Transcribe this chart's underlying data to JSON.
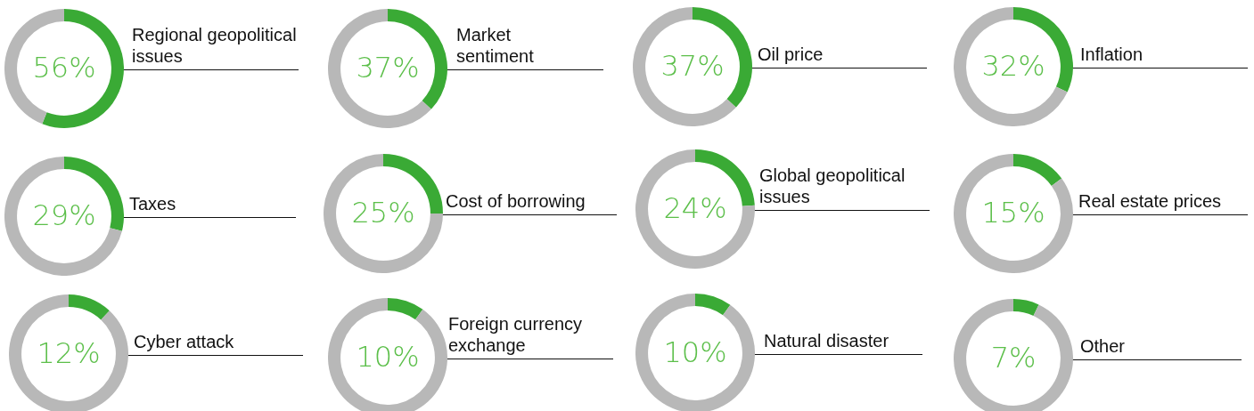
{
  "chart_data": [
    {
      "type": "donut",
      "title": "Regional geopolitical issues",
      "categories": [
        null,
        null
      ],
      "values": [
        56,
        44
      ],
      "colors": [
        "#3aaa35",
        "#b8b8b8"
      ],
      "value_labels": [
        "56%",
        null
      ]
    },
    {
      "type": "donut",
      "title": "Market sentiment",
      "categories": [
        null,
        null
      ],
      "values": [
        37,
        63
      ],
      "colors": [
        "#3aaa35",
        "#b8b8b8"
      ],
      "value_labels": [
        "37%",
        null
      ]
    },
    {
      "type": "donut",
      "title": "Oil price",
      "categories": [
        null,
        null
      ],
      "values": [
        37,
        63
      ],
      "colors": [
        "#3aaa35",
        "#b8b8b8"
      ],
      "value_labels": [
        "37%",
        null
      ]
    },
    {
      "type": "donut",
      "title": "Inflation",
      "categories": [
        null,
        null
      ],
      "values": [
        32,
        68
      ],
      "colors": [
        "#3aaa35",
        "#b8b8b8"
      ],
      "value_labels": [
        "32%",
        null
      ]
    },
    {
      "type": "donut",
      "title": "Taxes",
      "categories": [
        null,
        null
      ],
      "values": [
        29,
        71
      ],
      "colors": [
        "#3aaa35",
        "#b8b8b8"
      ],
      "value_labels": [
        "29%",
        null
      ]
    },
    {
      "type": "donut",
      "title": "Cost of borrowing",
      "categories": [
        null,
        null
      ],
      "values": [
        25,
        75
      ],
      "colors": [
        "#3aaa35",
        "#b8b8b8"
      ],
      "value_labels": [
        "25%",
        null
      ]
    },
    {
      "type": "donut",
      "title": "Global geopolitical issues",
      "categories": [
        null,
        null
      ],
      "values": [
        24,
        76
      ],
      "colors": [
        "#3aaa35",
        "#b8b8b8"
      ],
      "value_labels": [
        "24%",
        null
      ]
    },
    {
      "type": "donut",
      "title": "Real estate prices",
      "categories": [
        null,
        null
      ],
      "values": [
        15,
        85
      ],
      "colors": [
        "#3aaa35",
        "#b8b8b8"
      ],
      "value_labels": [
        "15%",
        null
      ]
    },
    {
      "type": "donut",
      "title": "Cyber attack",
      "categories": [
        null,
        null
      ],
      "values": [
        12,
        88
      ],
      "colors": [
        "#3aaa35",
        "#b8b8b8"
      ],
      "value_labels": [
        "12%",
        null
      ]
    },
    {
      "type": "donut",
      "title": "Foreign currency exchange",
      "categories": [
        null,
        null
      ],
      "values": [
        10,
        90
      ],
      "colors": [
        "#3aaa35",
        "#b8b8b8"
      ],
      "value_labels": [
        "10%",
        null
      ]
    },
    {
      "type": "donut",
      "title": "Natural disaster",
      "categories": [
        null,
        null
      ],
      "values": [
        10,
        90
      ],
      "colors": [
        "#3aaa35",
        "#b8b8b8"
      ],
      "value_labels": [
        "10%",
        null
      ]
    },
    {
      "type": "donut",
      "title": "Other",
      "categories": [
        null,
        null
      ],
      "values": [
        7,
        93
      ],
      "colors": [
        "#3aaa35",
        "#b8b8b8"
      ],
      "value_labels": [
        "7%",
        null
      ]
    }
  ]
}
